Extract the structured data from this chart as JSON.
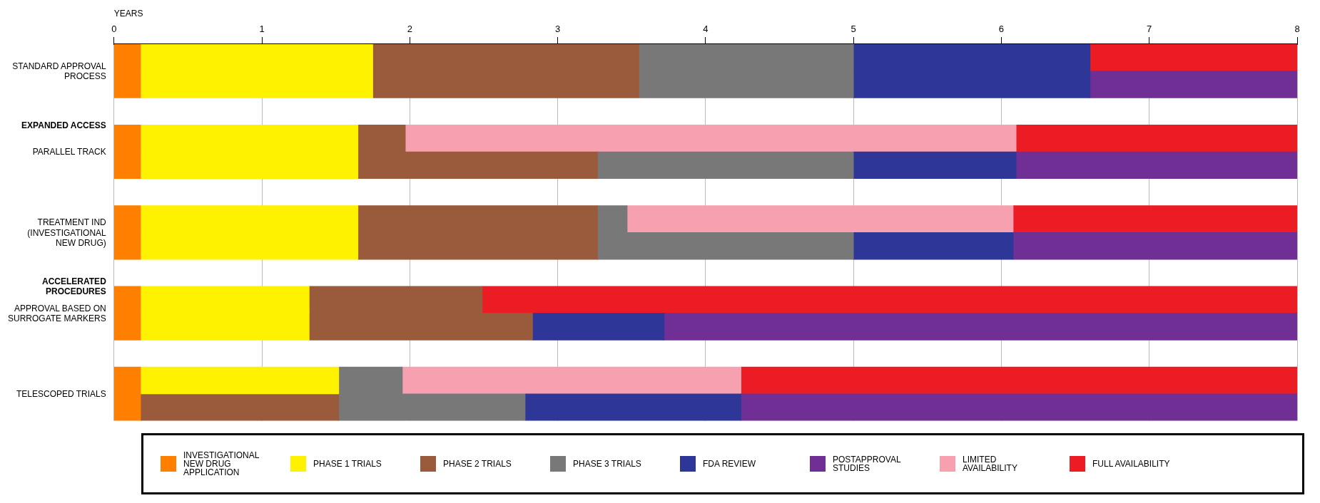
{
  "chart_data": {
    "type": "bar",
    "orientation": "horizontal",
    "xlabel": "YEARS",
    "xlim": [
      0,
      8
    ],
    "xticks": [
      0,
      1,
      2,
      3,
      4,
      5,
      6,
      7,
      8
    ],
    "grid": "x",
    "legend": "bottom",
    "categories": [
      "STANDARD APPROVAL PROCESS",
      null,
      "EXPANDED ACCESS",
      "PARALLEL TRACK",
      null,
      null,
      "TREATMENT IND (INVESTIGATIONAL NEW DRUG)",
      null,
      "ACCELERATED PROCEDURES",
      "APPROVAL BASED ON SURROGATE MARKERS",
      null,
      null,
      "TELESCOPED TRIALS",
      null
    ],
    "series": [
      {
        "name": "INVESTIGATIONAL NEW DRUG APPLICATION",
        "color": "#ff7f00",
        "base": [
          0,
          0,
          null,
          0,
          0,
          null,
          0,
          0,
          null,
          0,
          0,
          null,
          0,
          0
        ],
        "values": [
          0.18,
          0.18,
          null,
          0.18,
          0.18,
          null,
          0.18,
          0.18,
          null,
          0.18,
          0.18,
          null,
          0.18,
          0.18
        ]
      },
      {
        "name": "PHASE 1 TRIALS",
        "color": "#fff200",
        "base": [
          0.18,
          0.18,
          null,
          0.18,
          0.18,
          null,
          0.18,
          0.18,
          null,
          0.18,
          0.18,
          null,
          0.18,
          null
        ],
        "values": [
          1.57,
          1.57,
          null,
          1.47,
          1.47,
          null,
          1.47,
          1.47,
          null,
          1.14,
          1.14,
          null,
          1.34,
          null
        ]
      },
      {
        "name": "PHASE 2 TRIALS",
        "color": "#9a5b3c",
        "base": [
          1.75,
          1.75,
          null,
          1.65,
          1.65,
          null,
          1.65,
          1.65,
          null,
          1.32,
          1.32,
          null,
          null,
          0.18
        ],
        "values": [
          1.8,
          1.8,
          null,
          0.32,
          1.62,
          null,
          1.62,
          1.62,
          null,
          1.17,
          1.51,
          null,
          null,
          1.34
        ]
      },
      {
        "name": "PHASE 3 TRIALS",
        "color": "#787878",
        "base": [
          3.55,
          3.55,
          null,
          null,
          3.27,
          null,
          3.27,
          3.27,
          null,
          null,
          null,
          null,
          1.52,
          1.52
        ],
        "values": [
          1.45,
          1.45,
          null,
          null,
          1.73,
          null,
          0.2,
          1.73,
          null,
          null,
          null,
          null,
          0.43,
          1.26
        ]
      },
      {
        "name": "FDA REVIEW",
        "color": "#2e3798",
        "base": [
          5,
          5,
          null,
          null,
          5,
          null,
          null,
          5,
          null,
          null,
          2.83,
          null,
          null,
          2.78
        ],
        "values": [
          1.6,
          1.6,
          null,
          null,
          1.1,
          null,
          null,
          1.08,
          null,
          null,
          0.89,
          null,
          null,
          1.46
        ]
      },
      {
        "name": "POSTAPPROVAL STUDIES",
        "color": "#6f2f95",
        "base": [
          null,
          6.6,
          null,
          null,
          6.1,
          null,
          null,
          6.08,
          null,
          null,
          3.72,
          null,
          null,
          4.24
        ],
        "values": [
          null,
          1.4,
          null,
          null,
          1.9,
          null,
          null,
          1.92,
          null,
          null,
          4.28,
          null,
          null,
          3.76
        ]
      },
      {
        "name": "LIMITED AVAILABILITY",
        "color": "#f7a1b0",
        "base": [
          null,
          null,
          null,
          1.97,
          null,
          null,
          3.47,
          null,
          null,
          null,
          null,
          null,
          1.95,
          null
        ],
        "values": [
          null,
          null,
          null,
          4.13,
          null,
          null,
          2.61,
          null,
          null,
          null,
          null,
          null,
          2.29,
          null
        ]
      },
      {
        "name": "FULL AVAILABILITY",
        "color": "#ec1c24",
        "base": [
          6.6,
          null,
          null,
          6.1,
          null,
          null,
          6.08,
          null,
          null,
          2.49,
          null,
          null,
          4.24,
          null
        ],
        "values": [
          1.4,
          null,
          null,
          1.9,
          null,
          null,
          1.92,
          null,
          null,
          5.51,
          null,
          null,
          3.76,
          null
        ]
      }
    ]
  }
}
